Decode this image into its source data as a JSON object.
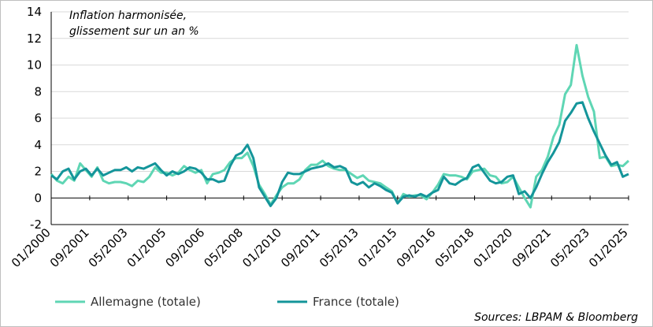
{
  "chart_data": {
    "type": "line",
    "title_lines": [
      "Inflation harmonisée,",
      "glissement sur un an %"
    ],
    "xlabel": "",
    "ylabel": "",
    "ylim": [
      -2,
      14
    ],
    "y_ticks": [
      -2,
      0,
      2,
      4,
      6,
      8,
      10,
      12,
      14
    ],
    "x_range": [
      2000.0,
      2025.0
    ],
    "x_ticks": [
      {
        "label": "01/2000",
        "t": 2000.0
      },
      {
        "label": "09/2001",
        "t": 2001.667
      },
      {
        "label": "05/2003",
        "t": 2003.333
      },
      {
        "label": "01/2005",
        "t": 2005.0
      },
      {
        "label": "09/2006",
        "t": 2006.667
      },
      {
        "label": "05/2008",
        "t": 2008.333
      },
      {
        "label": "01/2010",
        "t": 2010.0
      },
      {
        "label": "09/2011",
        "t": 2011.667
      },
      {
        "label": "05/2013",
        "t": 2013.333
      },
      {
        "label": "01/2015",
        "t": 2015.0
      },
      {
        "label": "09/2016",
        "t": 2016.667
      },
      {
        "label": "05/2018",
        "t": 2018.333
      },
      {
        "label": "01/2020",
        "t": 2020.0
      },
      {
        "label": "09/2021",
        "t": 2021.667
      },
      {
        "label": "05/2023",
        "t": 2023.333
      },
      {
        "label": "01/2025",
        "t": 2025.0
      }
    ],
    "series": [
      {
        "name": "Allemagne (totale)",
        "color": "#5fd6b4",
        "points": [
          [
            2000.0,
            1.8
          ],
          [
            2000.25,
            1.3
          ],
          [
            2000.5,
            1.1
          ],
          [
            2000.75,
            1.6
          ],
          [
            2001.0,
            1.3
          ],
          [
            2001.25,
            2.6
          ],
          [
            2001.5,
            2.1
          ],
          [
            2001.75,
            1.6
          ],
          [
            2002.0,
            2.3
          ],
          [
            2002.25,
            1.3
          ],
          [
            2002.5,
            1.1
          ],
          [
            2002.75,
            1.2
          ],
          [
            2003.0,
            1.2
          ],
          [
            2003.25,
            1.1
          ],
          [
            2003.5,
            0.9
          ],
          [
            2003.75,
            1.3
          ],
          [
            2004.0,
            1.2
          ],
          [
            2004.25,
            1.6
          ],
          [
            2004.5,
            2.3
          ],
          [
            2004.75,
            1.9
          ],
          [
            2005.0,
            1.9
          ],
          [
            2005.25,
            1.7
          ],
          [
            2005.5,
            1.9
          ],
          [
            2005.75,
            2.4
          ],
          [
            2006.0,
            2.1
          ],
          [
            2006.25,
            1.9
          ],
          [
            2006.5,
            2.1
          ],
          [
            2006.75,
            1.1
          ],
          [
            2007.0,
            1.8
          ],
          [
            2007.25,
            1.9
          ],
          [
            2007.5,
            2.1
          ],
          [
            2007.75,
            2.7
          ],
          [
            2008.0,
            3.0
          ],
          [
            2008.25,
            3.0
          ],
          [
            2008.5,
            3.4
          ],
          [
            2008.75,
            2.4
          ],
          [
            2009.0,
            1.0
          ],
          [
            2009.25,
            0.3
          ],
          [
            2009.5,
            -0.5
          ],
          [
            2009.75,
            0.2
          ],
          [
            2010.0,
            0.8
          ],
          [
            2010.25,
            1.1
          ],
          [
            2010.5,
            1.1
          ],
          [
            2010.75,
            1.4
          ],
          [
            2011.0,
            2.1
          ],
          [
            2011.25,
            2.5
          ],
          [
            2011.5,
            2.5
          ],
          [
            2011.75,
            2.8
          ],
          [
            2012.0,
            2.4
          ],
          [
            2012.25,
            2.2
          ],
          [
            2012.5,
            2.1
          ],
          [
            2012.75,
            2.1
          ],
          [
            2013.0,
            1.8
          ],
          [
            2013.25,
            1.5
          ],
          [
            2013.5,
            1.7
          ],
          [
            2013.75,
            1.3
          ],
          [
            2014.0,
            1.2
          ],
          [
            2014.25,
            1.1
          ],
          [
            2014.5,
            0.8
          ],
          [
            2014.75,
            0.5
          ],
          [
            2015.0,
            -0.4
          ],
          [
            2015.25,
            0.3
          ],
          [
            2015.5,
            0.1
          ],
          [
            2015.75,
            0.2
          ],
          [
            2016.0,
            0.2
          ],
          [
            2016.25,
            -0.1
          ],
          [
            2016.5,
            0.4
          ],
          [
            2016.75,
            1.0
          ],
          [
            2017.0,
            1.8
          ],
          [
            2017.25,
            1.7
          ],
          [
            2017.5,
            1.7
          ],
          [
            2017.75,
            1.6
          ],
          [
            2018.0,
            1.4
          ],
          [
            2018.25,
            2.0
          ],
          [
            2018.5,
            2.1
          ],
          [
            2018.75,
            2.2
          ],
          [
            2019.0,
            1.7
          ],
          [
            2019.25,
            1.6
          ],
          [
            2019.5,
            1.1
          ],
          [
            2019.75,
            1.2
          ],
          [
            2020.0,
            1.6
          ],
          [
            2020.25,
            0.8
          ],
          [
            2020.5,
            0.0
          ],
          [
            2020.75,
            -0.7
          ],
          [
            2021.0,
            1.6
          ],
          [
            2021.25,
            2.1
          ],
          [
            2021.5,
            3.1
          ],
          [
            2021.75,
            4.6
          ],
          [
            2022.0,
            5.5
          ],
          [
            2022.25,
            7.8
          ],
          [
            2022.5,
            8.5
          ],
          [
            2022.75,
            11.5
          ],
          [
            2023.0,
            9.2
          ],
          [
            2023.25,
            7.6
          ],
          [
            2023.5,
            6.5
          ],
          [
            2023.75,
            3.0
          ],
          [
            2024.0,
            3.1
          ],
          [
            2024.25,
            2.4
          ],
          [
            2024.5,
            2.5
          ],
          [
            2024.75,
            2.4
          ],
          [
            2025.0,
            2.8
          ]
        ]
      },
      {
        "name": "France (totale)",
        "color": "#14959a",
        "points": [
          [
            2000.0,
            1.7
          ],
          [
            2000.25,
            1.4
          ],
          [
            2000.5,
            2.0
          ],
          [
            2000.75,
            2.2
          ],
          [
            2001.0,
            1.4
          ],
          [
            2001.25,
            2.0
          ],
          [
            2001.5,
            2.2
          ],
          [
            2001.75,
            1.7
          ],
          [
            2002.0,
            2.2
          ],
          [
            2002.25,
            1.7
          ],
          [
            2002.5,
            1.9
          ],
          [
            2002.75,
            2.1
          ],
          [
            2003.0,
            2.1
          ],
          [
            2003.25,
            2.3
          ],
          [
            2003.5,
            2.0
          ],
          [
            2003.75,
            2.3
          ],
          [
            2004.0,
            2.2
          ],
          [
            2004.25,
            2.4
          ],
          [
            2004.5,
            2.6
          ],
          [
            2004.75,
            2.1
          ],
          [
            2005.0,
            1.7
          ],
          [
            2005.25,
            2.0
          ],
          [
            2005.5,
            1.8
          ],
          [
            2005.75,
            2.0
          ],
          [
            2006.0,
            2.3
          ],
          [
            2006.25,
            2.2
          ],
          [
            2006.5,
            1.9
          ],
          [
            2006.75,
            1.4
          ],
          [
            2007.0,
            1.4
          ],
          [
            2007.25,
            1.2
          ],
          [
            2007.5,
            1.3
          ],
          [
            2007.75,
            2.4
          ],
          [
            2008.0,
            3.2
          ],
          [
            2008.25,
            3.4
          ],
          [
            2008.5,
            4.0
          ],
          [
            2008.75,
            3.0
          ],
          [
            2009.0,
            0.8
          ],
          [
            2009.25,
            0.1
          ],
          [
            2009.5,
            -0.6
          ],
          [
            2009.75,
            0.0
          ],
          [
            2010.0,
            1.2
          ],
          [
            2010.25,
            1.9
          ],
          [
            2010.5,
            1.8
          ],
          [
            2010.75,
            1.8
          ],
          [
            2011.0,
            2.0
          ],
          [
            2011.25,
            2.2
          ],
          [
            2011.5,
            2.3
          ],
          [
            2011.75,
            2.4
          ],
          [
            2012.0,
            2.6
          ],
          [
            2012.25,
            2.3
          ],
          [
            2012.5,
            2.4
          ],
          [
            2012.75,
            2.2
          ],
          [
            2013.0,
            1.2
          ],
          [
            2013.25,
            1.0
          ],
          [
            2013.5,
            1.2
          ],
          [
            2013.75,
            0.8
          ],
          [
            2014.0,
            1.1
          ],
          [
            2014.25,
            0.9
          ],
          [
            2014.5,
            0.6
          ],
          [
            2014.75,
            0.4
          ],
          [
            2015.0,
            -0.4
          ],
          [
            2015.25,
            0.1
          ],
          [
            2015.5,
            0.2
          ],
          [
            2015.75,
            0.1
          ],
          [
            2016.0,
            0.3
          ],
          [
            2016.25,
            0.1
          ],
          [
            2016.5,
            0.4
          ],
          [
            2016.75,
            0.6
          ],
          [
            2017.0,
            1.6
          ],
          [
            2017.25,
            1.1
          ],
          [
            2017.5,
            1.0
          ],
          [
            2017.75,
            1.3
          ],
          [
            2018.0,
            1.5
          ],
          [
            2018.25,
            2.3
          ],
          [
            2018.5,
            2.5
          ],
          [
            2018.75,
            1.9
          ],
          [
            2019.0,
            1.3
          ],
          [
            2019.25,
            1.1
          ],
          [
            2019.5,
            1.2
          ],
          [
            2019.75,
            1.6
          ],
          [
            2020.0,
            1.7
          ],
          [
            2020.25,
            0.3
          ],
          [
            2020.5,
            0.5
          ],
          [
            2020.75,
            0.0
          ],
          [
            2021.0,
            0.8
          ],
          [
            2021.25,
            1.8
          ],
          [
            2021.5,
            2.7
          ],
          [
            2021.75,
            3.4
          ],
          [
            2022.0,
            4.2
          ],
          [
            2022.25,
            5.8
          ],
          [
            2022.5,
            6.4
          ],
          [
            2022.75,
            7.1
          ],
          [
            2023.0,
            7.2
          ],
          [
            2023.25,
            6.0
          ],
          [
            2023.5,
            5.0
          ],
          [
            2023.75,
            4.1
          ],
          [
            2024.0,
            3.2
          ],
          [
            2024.25,
            2.5
          ],
          [
            2024.5,
            2.7
          ],
          [
            2024.75,
            1.6
          ],
          [
            2025.0,
            1.8
          ]
        ]
      }
    ],
    "source": "Sources: LBPAM & Bloomberg"
  }
}
